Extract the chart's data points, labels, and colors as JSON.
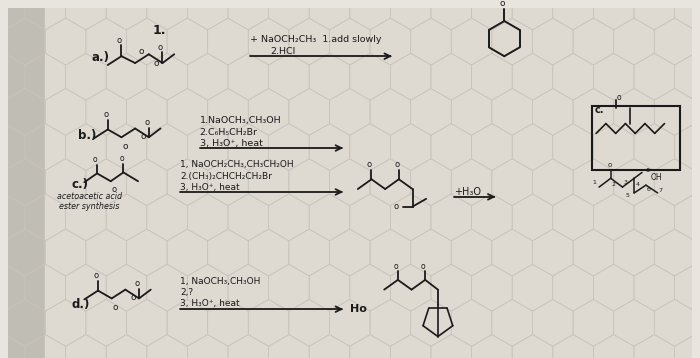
{
  "bg_color": "#e8e5de",
  "paper_color": "#dedad2",
  "hex_color": "#c8c4bc",
  "text_color": "#1a1a1a",
  "line_color": "#1a1a1a",
  "left_bar_color": "#b0b0a8",
  "left_bg": "#c0bdb5",
  "fig_w": 7.0,
  "fig_h": 3.58,
  "dpi": 100,
  "reactions": {
    "a_line1": "+ NaOCH₂CH₃  1.add slowly",
    "a_line2": "2.HCl",
    "b_line1": "1.NaOCH₃,CH₃OH",
    "b_line2": "2.C₆H₅CH₂Br",
    "b_line3": "3, H₃O⁺, heat",
    "c_line1": "1, NaOCH₂CH₃,CH₃CH₂OH",
    "c_line2": "2.(CH₃)₂CHCH₂CH₂Br",
    "c_line3": "3, H₃O⁺, heat",
    "d_line1": "1, NaOCH₃,CH₃OH",
    "d_line2": "2,?",
    "d_line3": "3, H₃O⁺, heat"
  },
  "labels": {
    "num1": "1.",
    "a": "a.)",
    "b": "b.)",
    "c": "c.)",
    "d": "d.)",
    "acetoacetic1": "acetoacetic acid",
    "acetoacetic2": "ester synthesis",
    "h3o": "+H₃O",
    "ho": "Ho",
    "c_box": "c.",
    "o": "o"
  }
}
